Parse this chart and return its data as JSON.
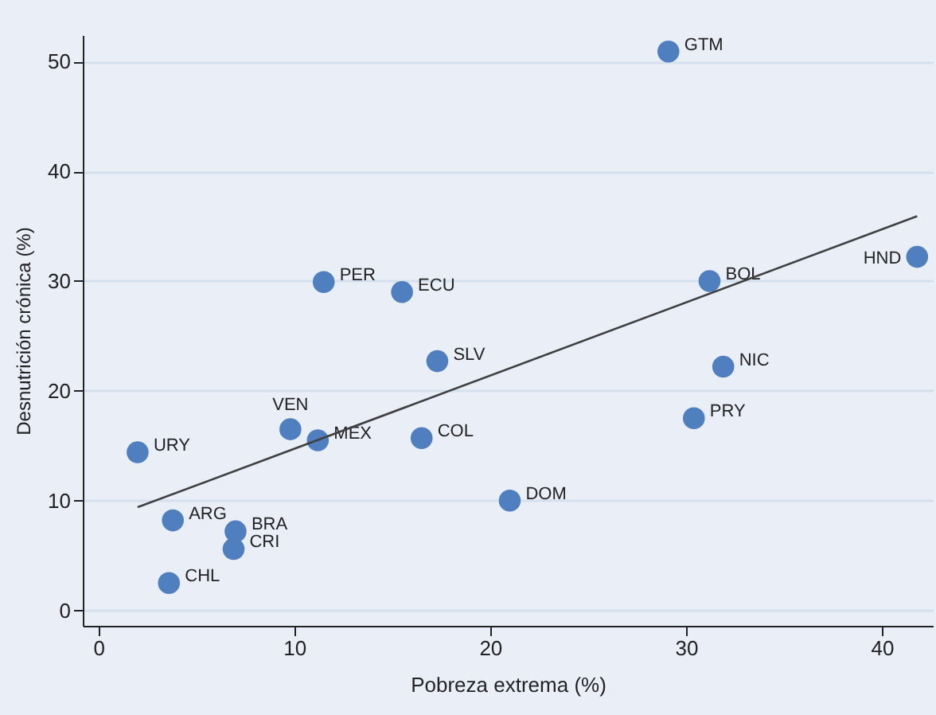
{
  "chart_data": {
    "type": "scatter",
    "xlabel": "Pobreza extrema (%)",
    "ylabel": "Desnutrición crónica (%)",
    "xlim": [
      -0.8,
      42.6
    ],
    "ylim": [
      -1.4,
      52.4
    ],
    "xticks": [
      0,
      10,
      20,
      30,
      40
    ],
    "yticks": [
      0,
      10,
      20,
      30,
      40,
      50
    ],
    "grid": "y",
    "marker": "circle",
    "series": [
      {
        "color": "#4f7fbf",
        "x": [
          11.5,
          15.5,
          29.1,
          31.2,
          41.8,
          17.3,
          9.8,
          11.2,
          16.5,
          2.0,
          3.8,
          7.0,
          6.9,
          3.6,
          31.9,
          30.4,
          21.0
        ],
        "values": [
          29.9,
          29.0,
          50.9,
          30.0,
          32.2,
          22.7,
          16.5,
          15.5,
          15.7,
          14.4,
          8.2,
          7.2,
          5.6,
          2.5,
          22.2,
          17.5,
          10.0
        ],
        "value_labels": [
          "PER",
          "ECU",
          "GTM",
          "BOL",
          "HND",
          "SLV",
          "VEN",
          "MEX",
          "COL",
          "URY",
          "ARG",
          "BRA",
          "CRI",
          "CHL",
          "NIC",
          "PRY",
          "DOM"
        ]
      },
      {
        "type": "line",
        "color": "#404040",
        "x": [
          2.0,
          41.8
        ],
        "values": [
          9.4,
          35.9
        ],
        "line_style": "solid",
        "marker": "none"
      }
    ]
  }
}
